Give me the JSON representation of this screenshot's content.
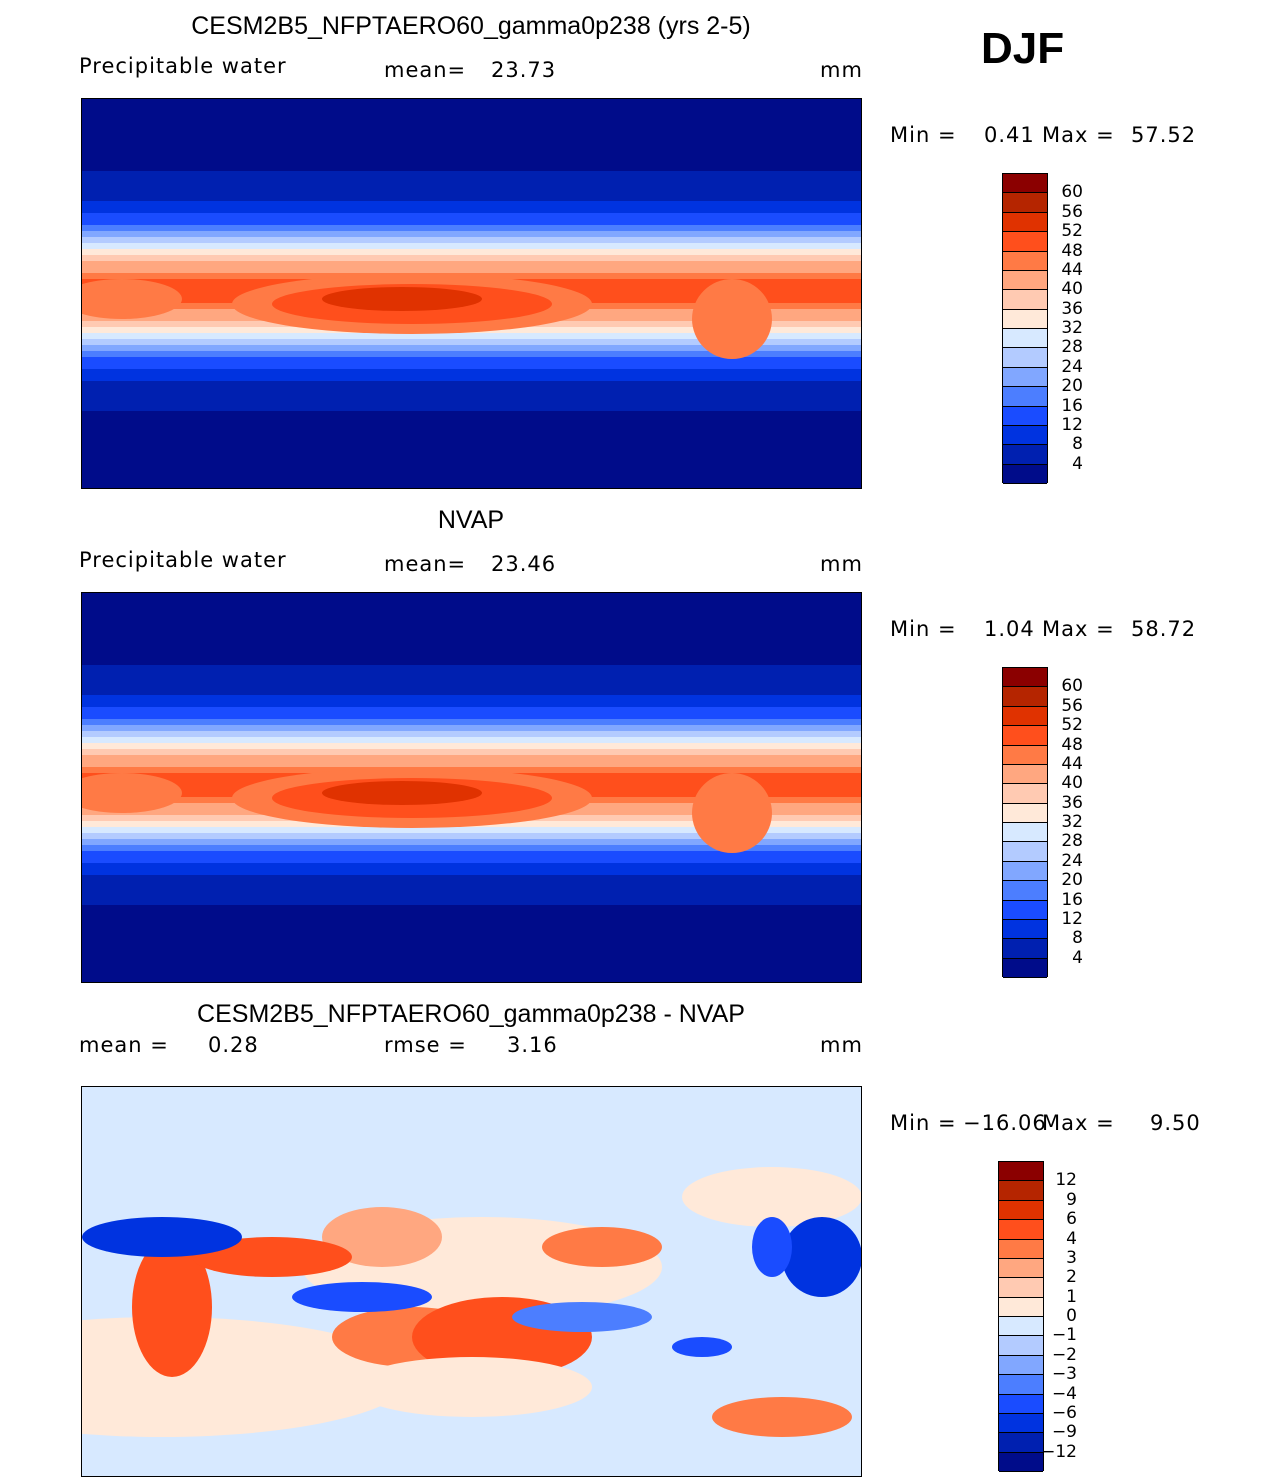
{
  "season": "DJF",
  "panels": [
    {
      "title": "CESM2B5_NFPTAERO60_gamma0p238 (yrs 2-5)",
      "left_label": "Precipitable water",
      "mid_label": "mean=",
      "mid_value": "23.73",
      "units": "mm",
      "min_label": "Min =",
      "min": "0.41",
      "max_label": "Max =",
      "max": "57.52",
      "scale": "abs"
    },
    {
      "title": "NVAP",
      "left_label": "Precipitable water",
      "mid_label": "mean=",
      "mid_value": "23.46",
      "units": "mm",
      "min_label": "Min =",
      "min": "1.04",
      "max_label": "Max =",
      "max": "58.72",
      "scale": "abs"
    },
    {
      "title": "CESM2B5_NFPTAERO60_gamma0p238 - NVAP",
      "left_label": "mean =",
      "left_value": "0.28",
      "mid_label": "rmse =",
      "mid_value": "3.16",
      "units": "mm",
      "min_label": "Min =",
      "min": "−16.06",
      "max_label": "Max =",
      "max": "9.50",
      "scale": "diff"
    }
  ],
  "colorbars": {
    "colors": [
      "#8b0000",
      "#b52500",
      "#e03200",
      "#ff4f1c",
      "#ff7a45",
      "#ffa780",
      "#ffcab2",
      "#ffe9d9",
      "#d7e9ff",
      "#b3cbff",
      "#81a7ff",
      "#4c7eff",
      "#1a4cff",
      "#0033e0",
      "#0020b0",
      "#000c8a"
    ],
    "abs_labels": [
      "60",
      "56",
      "52",
      "48",
      "44",
      "40",
      "36",
      "32",
      "28",
      "24",
      "20",
      "16",
      "12",
      "8",
      "4"
    ],
    "diff_labels": [
      "12",
      "9",
      "6",
      "4",
      "3",
      "2",
      "1",
      "0",
      "−1",
      "−2",
      "−3",
      "−4",
      "−6",
      "−9",
      "−12"
    ]
  }
}
